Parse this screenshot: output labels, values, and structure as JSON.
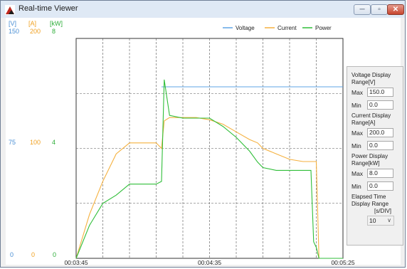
{
  "window": {
    "title": "Real-time Viewer",
    "buttons": {
      "minimize": "─",
      "maximize": "▫",
      "close": "✕"
    }
  },
  "units": {
    "voltage": {
      "label": "[V]",
      "max": "150",
      "mid": "75",
      "min": "0",
      "color": "#4a8fd4"
    },
    "current": {
      "label": "[A]",
      "max": "200",
      "mid": "100",
      "min": "0",
      "color": "#f0a020"
    },
    "power": {
      "label": "[kW]",
      "max": "8",
      "mid": "4",
      "min": "0",
      "color": "#2fae3a"
    }
  },
  "legend": [
    {
      "name": "Voltage",
      "color": "#5fa4e6"
    },
    {
      "name": "Current",
      "color": "#f5b13f"
    },
    {
      "name": "Power",
      "color": "#2fbe38"
    }
  ],
  "time_labels": [
    "00:03:45",
    "00:04:35",
    "00:05:25"
  ],
  "chart_data": {
    "type": "line",
    "x_labels": [
      "00:03:45",
      "00:04:35",
      "00:05:25"
    ],
    "x_unit_per_div_s": 10,
    "x": [
      0,
      5,
      10,
      15,
      20,
      22,
      25,
      30,
      32,
      33,
      35,
      40,
      45,
      50,
      55,
      60,
      65,
      68,
      70,
      75,
      80,
      85,
      88,
      89,
      90,
      91,
      92,
      100
    ],
    "series": [
      {
        "name": "Voltage",
        "axis": "V",
        "range": [
          0,
          150
        ],
        "values": [
          null,
          null,
          null,
          null,
          null,
          null,
          null,
          null,
          117,
          117,
          117,
          117,
          117,
          117,
          117,
          117,
          117,
          117,
          117,
          117,
          117,
          117,
          117,
          117,
          117,
          117,
          117,
          117
        ]
      },
      {
        "name": "Current",
        "axis": "A",
        "range": [
          0,
          200
        ],
        "values": [
          0,
          40,
          70,
          95,
          105,
          105,
          105,
          105,
          100,
          125,
          128,
          128,
          128,
          126,
          122,
          115,
          108,
          105,
          100,
          95,
          90,
          88,
          88,
          88,
          88,
          0,
          0,
          0
        ]
      },
      {
        "name": "Power",
        "axis": "kW",
        "range": [
          0,
          8
        ],
        "values": [
          0,
          1.2,
          2.0,
          2.3,
          2.7,
          2.7,
          2.7,
          2.7,
          2.8,
          6.5,
          5.2,
          5.1,
          5.1,
          5.1,
          4.8,
          4.4,
          3.9,
          3.5,
          3.3,
          3.2,
          3.2,
          3.2,
          3.2,
          0.6,
          0.4,
          0,
          0,
          0
        ]
      }
    ],
    "grid": true,
    "legend_position": "top-right"
  },
  "settings": {
    "voltage": {
      "label": "Voltage Display Range[V]",
      "max_label": "Max",
      "max": "150.0",
      "min_label": "Min",
      "min": "0.0"
    },
    "current": {
      "label": "Current Display Range[A]",
      "max_label": "Max",
      "max": "200.0",
      "min_label": "Min",
      "min": "0.0"
    },
    "power": {
      "label": "Power Display Range[kW]",
      "max_label": "Max",
      "max": "8.0",
      "min_label": "Min",
      "min": "0.0"
    },
    "elapsed": {
      "label": "Elapsed Time Display Range",
      "unit": "[s/DIV]",
      "value": "10"
    }
  }
}
